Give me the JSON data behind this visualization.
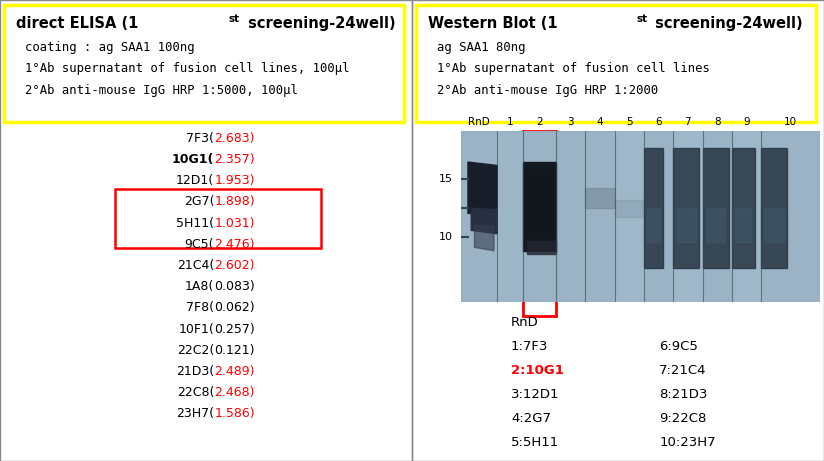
{
  "left_panel": {
    "header_lines": [
      "coating : ag SAA1 100ng",
      "1°Ab supernatant of fusion cell lines, 100μl",
      "2°Ab anti-mouse IgG HRP 1:5000, 100μl"
    ],
    "elisa_entries": [
      {
        "label": "7F3",
        "value": "2.683",
        "label_bold": false,
        "value_red": true
      },
      {
        "label": "10G1",
        "value": "2.357",
        "label_bold": true,
        "value_red": true
      },
      {
        "label": "12D1",
        "value": "1.953",
        "label_bold": false,
        "value_red": true
      },
      {
        "label": "2G7",
        "value": "1.898",
        "label_bold": false,
        "value_red": true,
        "boxed": true
      },
      {
        "label": "5H11",
        "value": "1.031",
        "label_bold": false,
        "value_red": true,
        "boxed": true
      },
      {
        "label": "9C5",
        "value": "2.476",
        "label_bold": false,
        "value_red": true
      },
      {
        "label": "21C4",
        "value": "2.602",
        "label_bold": false,
        "value_red": true
      },
      {
        "label": "1A8",
        "value": "0.083",
        "label_bold": false,
        "value_red": false
      },
      {
        "label": "7F8",
        "value": "0.062",
        "label_bold": false,
        "value_red": false
      },
      {
        "label": "10F1",
        "value": "0.257",
        "label_bold": false,
        "value_red": false
      },
      {
        "label": "22C2",
        "value": "0.121",
        "label_bold": false,
        "value_red": false
      },
      {
        "label": "21D3",
        "value": "2.489",
        "label_bold": false,
        "value_red": true
      },
      {
        "label": "22C8",
        "value": "2.468",
        "label_bold": false,
        "value_red": true
      },
      {
        "label": "23H7",
        "value": "1.586",
        "label_bold": false,
        "value_red": true
      }
    ],
    "header_box_color": "#FFFF00"
  },
  "right_panel": {
    "header_lines": [
      "ag SAA1 80ng",
      "1°Ab supernatant of fusion cell lines",
      "2°Ab anti-mouse IgG HRP 1:2000"
    ],
    "wb_lane_labels": [
      "RnD",
      "1",
      "2",
      "3",
      "4",
      "5",
      "6",
      "7",
      "8",
      "9",
      "10"
    ],
    "legend_col1": [
      "RnD",
      "1:7F3",
      "2:10G1",
      "3:12D1",
      "4:2G7",
      "5:5H11"
    ],
    "legend_col2": [
      "6:9C5",
      "7:21C4",
      "8:21D3",
      "9:22C8",
      "10:23H7"
    ],
    "legend_red_entry": "2:10G1",
    "header_box_color": "#FFFF00"
  },
  "background_color": "#FFFFFF",
  "text_color_black": "#000000",
  "text_color_red": "#FF0000",
  "yellow": "#FFFF00",
  "red": "#FF0000"
}
